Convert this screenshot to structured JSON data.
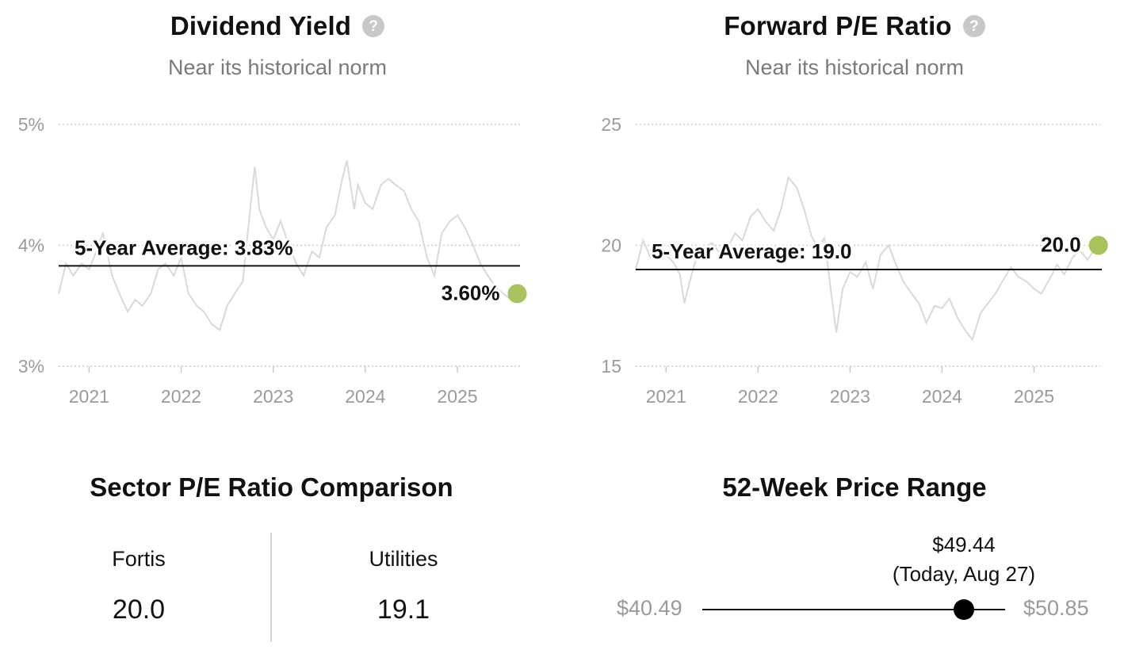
{
  "charts": [
    {
      "title": "Dividend Yield",
      "subtitle": "Near its historical norm",
      "help_icon": "question-circle-icon"
    },
    {
      "title": "Forward P/E Ratio",
      "subtitle": "Near its historical norm",
      "help_icon": "question-circle-icon"
    }
  ],
  "chart_data": [
    {
      "type": "line",
      "title": "Dividend Yield",
      "subtitle": "Near its historical norm",
      "y_ticks": [
        "5%",
        "4%",
        "3%"
      ],
      "y_tick_values": [
        5,
        4,
        3
      ],
      "ylim": [
        3,
        5
      ],
      "x_ticks": [
        "2021",
        "2022",
        "2023",
        "2024",
        "2025"
      ],
      "x_tick_values": [
        2021,
        2022,
        2023,
        2024,
        2025
      ],
      "xlim": [
        2020.67,
        2025.68
      ],
      "grid": true,
      "average": {
        "label": "5-Year Average: 3.83%",
        "value": 3.83
      },
      "current": {
        "label": "3.60%",
        "value": 3.6,
        "x": 2025.65
      },
      "colors": {
        "line": "#d9d9d9",
        "average": "#111111",
        "current": "#a9c25d",
        "grid": "#c9c9c9"
      },
      "series": [
        {
          "x": [
            2020.67,
            2020.75,
            2020.83,
            2020.92,
            2021.0,
            2021.08,
            2021.15,
            2021.25,
            2021.33,
            2021.42,
            2021.5,
            2021.58,
            2021.67,
            2021.75,
            2021.83,
            2021.92,
            2022.0,
            2022.08,
            2022.17,
            2022.25,
            2022.33,
            2022.42,
            2022.5,
            2022.58,
            2022.67,
            2022.75,
            2022.8,
            2022.85,
            2022.92,
            2023.0,
            2023.08,
            2023.17,
            2023.25,
            2023.33,
            2023.42,
            2023.5,
            2023.58,
            2023.67,
            2023.75,
            2023.8,
            2023.88,
            2023.92,
            2024.0,
            2024.08,
            2024.17,
            2024.25,
            2024.33,
            2024.42,
            2024.5,
            2024.58,
            2024.67,
            2024.75,
            2024.83,
            2024.92,
            2025.0,
            2025.08,
            2025.17,
            2025.25,
            2025.33,
            2025.42,
            2025.5,
            2025.58,
            2025.65
          ],
          "y": [
            3.6,
            3.85,
            3.75,
            3.85,
            3.8,
            3.95,
            4.1,
            3.75,
            3.6,
            3.45,
            3.55,
            3.5,
            3.6,
            3.8,
            3.85,
            3.75,
            3.9,
            3.6,
            3.5,
            3.45,
            3.35,
            3.3,
            3.5,
            3.6,
            3.7,
            4.3,
            4.65,
            4.3,
            4.15,
            4.05,
            4.2,
            4.0,
            3.85,
            3.75,
            3.95,
            3.9,
            4.15,
            4.25,
            4.55,
            4.7,
            4.3,
            4.5,
            4.35,
            4.3,
            4.5,
            4.55,
            4.5,
            4.45,
            4.3,
            4.2,
            3.9,
            3.75,
            4.1,
            4.2,
            4.25,
            4.15,
            4.0,
            3.85,
            3.75,
            3.65,
            3.6,
            3.55,
            3.6
          ]
        }
      ]
    },
    {
      "type": "line",
      "title": "Forward P/E Ratio",
      "subtitle": "Near its historical norm",
      "y_ticks": [
        "25",
        "20",
        "15"
      ],
      "y_tick_values": [
        25,
        20,
        15
      ],
      "ylim": [
        15,
        25
      ],
      "x_ticks": [
        "2021",
        "2022",
        "2023",
        "2024",
        "2025"
      ],
      "x_tick_values": [
        2021,
        2022,
        2023,
        2024,
        2025
      ],
      "xlim": [
        2020.67,
        2025.72
      ],
      "grid": true,
      "average": {
        "label": "5-Year Average: 19.0",
        "value": 19.0
      },
      "current": {
        "label": "20.0",
        "value": 20.0,
        "x": 2025.7
      },
      "colors": {
        "line": "#d9d9d9",
        "average": "#111111",
        "current": "#a9c25d",
        "grid": "#c9c9c9"
      },
      "series": [
        {
          "x": [
            2020.67,
            2020.75,
            2020.83,
            2020.92,
            2021.0,
            2021.08,
            2021.15,
            2021.2,
            2021.25,
            2021.33,
            2021.42,
            2021.5,
            2021.58,
            2021.67,
            2021.75,
            2021.83,
            2021.92,
            2022.0,
            2022.08,
            2022.17,
            2022.25,
            2022.33,
            2022.42,
            2022.5,
            2022.58,
            2022.65,
            2022.72,
            2022.78,
            2022.85,
            2022.92,
            2023.0,
            2023.08,
            2023.17,
            2023.25,
            2023.33,
            2023.42,
            2023.5,
            2023.58,
            2023.67,
            2023.75,
            2023.83,
            2023.92,
            2024.0,
            2024.08,
            2024.17,
            2024.25,
            2024.33,
            2024.42,
            2024.5,
            2024.58,
            2024.67,
            2024.75,
            2024.83,
            2024.92,
            2025.0,
            2025.08,
            2025.17,
            2025.25,
            2025.33,
            2025.42,
            2025.5,
            2025.58,
            2025.65,
            2025.7
          ],
          "y": [
            19.0,
            20.2,
            19.5,
            19.8,
            19.6,
            19.3,
            18.8,
            17.6,
            18.4,
            19.5,
            19.9,
            20.1,
            19.7,
            19.9,
            20.5,
            20.2,
            21.2,
            21.5,
            21.0,
            20.6,
            21.5,
            22.8,
            22.4,
            21.5,
            20.4,
            19.9,
            20.3,
            18.5,
            16.4,
            18.2,
            18.9,
            18.7,
            19.3,
            18.2,
            19.6,
            20.0,
            19.2,
            18.5,
            18.0,
            17.6,
            16.8,
            17.5,
            17.4,
            17.8,
            17.0,
            16.5,
            16.1,
            17.2,
            17.6,
            18.0,
            18.6,
            19.1,
            18.7,
            18.5,
            18.2,
            18.0,
            18.6,
            19.2,
            18.8,
            19.5,
            19.8,
            19.4,
            19.8,
            20.0
          ]
        }
      ]
    }
  ],
  "sector": {
    "title": "Sector P/E Ratio Comparison",
    "items": [
      {
        "label": "Fortis",
        "value": "20.0"
      },
      {
        "label": "Utilities",
        "value": "19.1"
      }
    ]
  },
  "range": {
    "title": "52-Week Price Range",
    "low": "$40.49",
    "high": "$50.85",
    "low_value": 40.49,
    "high_value": 50.85,
    "current_value": 49.44,
    "current_price": "$49.44",
    "current_note": "(Today, Aug 27)"
  }
}
